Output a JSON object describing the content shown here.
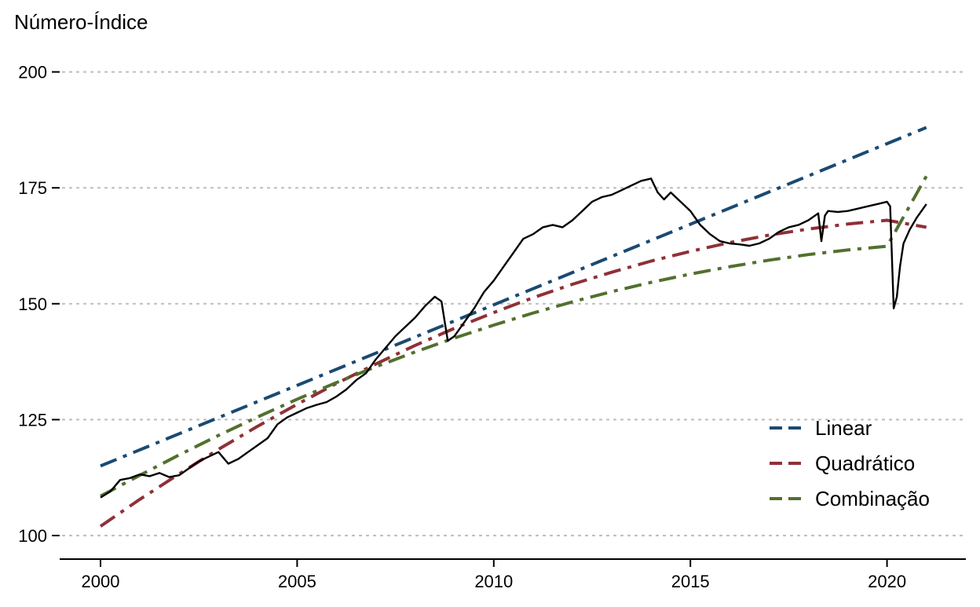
{
  "chart_data": {
    "type": "line",
    "title": "",
    "xlabel": "",
    "ylabel": "Número-Índice",
    "xlim": [
      1999,
      2022
    ],
    "ylim": [
      95,
      204
    ],
    "x_ticks": [
      2000,
      2005,
      2010,
      2015,
      2020
    ],
    "x_tick_labels": [
      "2000",
      "2005",
      "2010",
      "2015",
      "2020"
    ],
    "y_ticks": [
      100,
      125,
      150,
      175,
      200
    ],
    "y_tick_labels": [
      "100",
      "125",
      "150",
      "175",
      "200"
    ],
    "grid": "horizontal-dotted",
    "legend_position": "bottom-right",
    "observed": {
      "color": "#000000",
      "x": [
        2000.0,
        2000.25,
        2000.5,
        2000.75,
        2001.0,
        2001.25,
        2001.5,
        2001.75,
        2002.0,
        2002.25,
        2002.5,
        2002.75,
        2003.0,
        2003.25,
        2003.5,
        2003.75,
        2004.0,
        2004.25,
        2004.5,
        2004.75,
        2005.0,
        2005.25,
        2005.5,
        2005.75,
        2006.0,
        2006.25,
        2006.5,
        2006.75,
        2007.0,
        2007.25,
        2007.5,
        2007.75,
        2008.0,
        2008.25,
        2008.5,
        2008.67,
        2008.83,
        2009.0,
        2009.25,
        2009.5,
        2009.75,
        2010.0,
        2010.25,
        2010.5,
        2010.75,
        2011.0,
        2011.25,
        2011.5,
        2011.75,
        2012.0,
        2012.25,
        2012.5,
        2012.75,
        2013.0,
        2013.25,
        2013.5,
        2013.75,
        2014.0,
        2014.17,
        2014.33,
        2014.5,
        2014.75,
        2015.0,
        2015.25,
        2015.5,
        2015.75,
        2016.0,
        2016.25,
        2016.5,
        2016.75,
        2017.0,
        2017.25,
        2017.5,
        2017.75,
        2018.0,
        2018.25,
        2018.33,
        2018.42,
        2018.5,
        2018.75,
        2019.0,
        2019.25,
        2019.5,
        2019.75,
        2020.0,
        2020.08,
        2020.17,
        2020.25,
        2020.33,
        2020.42,
        2020.58,
        2020.75,
        2021.0
      ],
      "values": [
        108.2,
        109.5,
        112.0,
        112.4,
        113.2,
        112.8,
        113.5,
        112.6,
        113.0,
        114.5,
        116.0,
        117.0,
        118.0,
        115.5,
        116.5,
        118.0,
        119.5,
        121.0,
        124.0,
        125.5,
        126.5,
        127.5,
        128.2,
        128.8,
        130.0,
        131.5,
        133.5,
        135.0,
        138.0,
        140.5,
        143.0,
        145.0,
        147.0,
        149.5,
        151.5,
        150.5,
        142.0,
        143.0,
        146.0,
        149.0,
        152.5,
        155.0,
        158.0,
        161.0,
        164.0,
        165.0,
        166.5,
        167.0,
        166.5,
        168.0,
        170.0,
        172.0,
        173.0,
        173.5,
        174.5,
        175.5,
        176.5,
        177.0,
        174.0,
        172.5,
        174.0,
        172.0,
        170.0,
        167.0,
        165.0,
        163.5,
        163.0,
        162.8,
        162.5,
        163.0,
        164.0,
        165.5,
        166.5,
        167.0,
        168.0,
        169.5,
        163.5,
        169.0,
        170.0,
        169.8,
        170.0,
        170.5,
        171.0,
        171.5,
        172.0,
        171.0,
        149.0,
        151.5,
        158.0,
        163.0,
        166.0,
        168.5,
        171.5
      ]
    },
    "series": [
      {
        "name": "Linear",
        "color": "#1a4a72",
        "x": [
          2000,
          2021
        ],
        "values": [
          115.0,
          188.0
        ]
      },
      {
        "name": "Quadrático",
        "color": "#8f3038",
        "x": [
          2000,
          2001,
          2002,
          2003,
          2004,
          2005,
          2006,
          2007,
          2008,
          2009,
          2010,
          2011,
          2012,
          2013,
          2014,
          2015,
          2016,
          2017,
          2018,
          2019,
          2020,
          2021
        ],
        "values": [
          102.0,
          107.8,
          113.3,
          118.6,
          123.6,
          128.3,
          132.8,
          137.0,
          141.0,
          144.7,
          148.1,
          151.3,
          154.2,
          156.8,
          159.2,
          161.3,
          163.2,
          164.8,
          166.1,
          167.2,
          168.0,
          166.5
        ]
      },
      {
        "name": "Combinação",
        "color": "#52702e",
        "x": [
          2000,
          2001,
          2002,
          2003,
          2004,
          2005,
          2006,
          2007,
          2008,
          2009,
          2010,
          2011,
          2012,
          2013,
          2014,
          2015,
          2016,
          2017,
          2018,
          2019,
          2020,
          2021
        ],
        "values": [
          108.5,
          113.0,
          117.4,
          121.6,
          125.6,
          129.4,
          133.0,
          136.4,
          139.6,
          142.6,
          145.4,
          148.0,
          150.4,
          152.6,
          154.6,
          156.4,
          158.0,
          159.4,
          160.6,
          161.6,
          162.4,
          177.5
        ]
      }
    ]
  }
}
